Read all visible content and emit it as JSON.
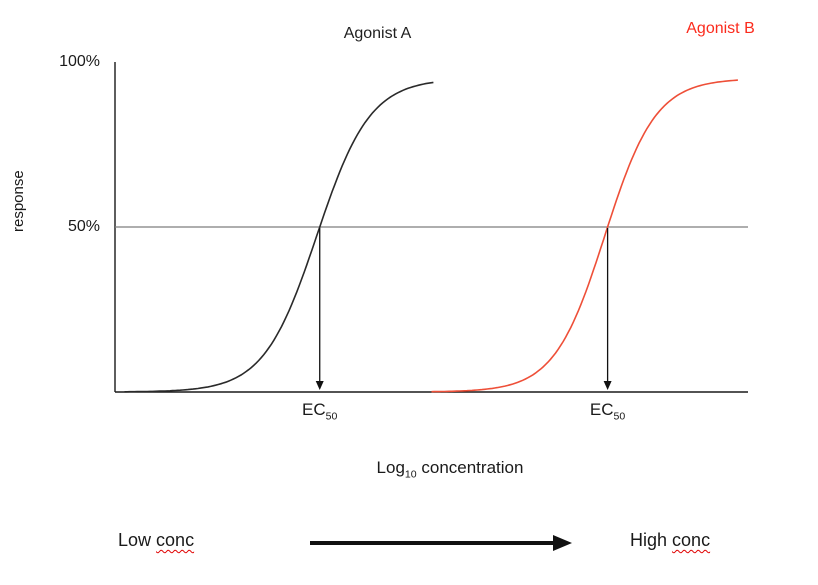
{
  "chart_data": {
    "type": "line",
    "ylabel": "response",
    "xlabel": {
      "prefix": "Log",
      "subscript": "10",
      "suffix": " concentration"
    },
    "ytick_100": "100%",
    "ytick_50": "50%",
    "ylim": [
      0,
      100
    ],
    "reference_line_pct": 50,
    "reference_line_color": "#7d7d7d",
    "series": [
      {
        "name": "Agonist A",
        "curve_color": "#2a2a2a",
        "label_color": "#1f1f1f",
        "max_response_pct": 95,
        "ec50_fraction": 0.319,
        "steepness": 0.042,
        "draw_from": 0.015,
        "draw_to": 0.505
      },
      {
        "name": "Agonist B",
        "curve_color": "#ee4f38",
        "label_color": "#fb2b1d",
        "max_response_pct": 95,
        "ec50_fraction": 0.774,
        "steepness": 0.04,
        "draw_from": 0.5,
        "draw_to": 0.985
      }
    ],
    "ec50_annotation": {
      "prefix": "EC",
      "subscript": "50"
    },
    "x_axis_note": {
      "low_word": "Low",
      "low_flagged": "conc",
      "high_word": "High",
      "high_flagged": "conc"
    }
  }
}
